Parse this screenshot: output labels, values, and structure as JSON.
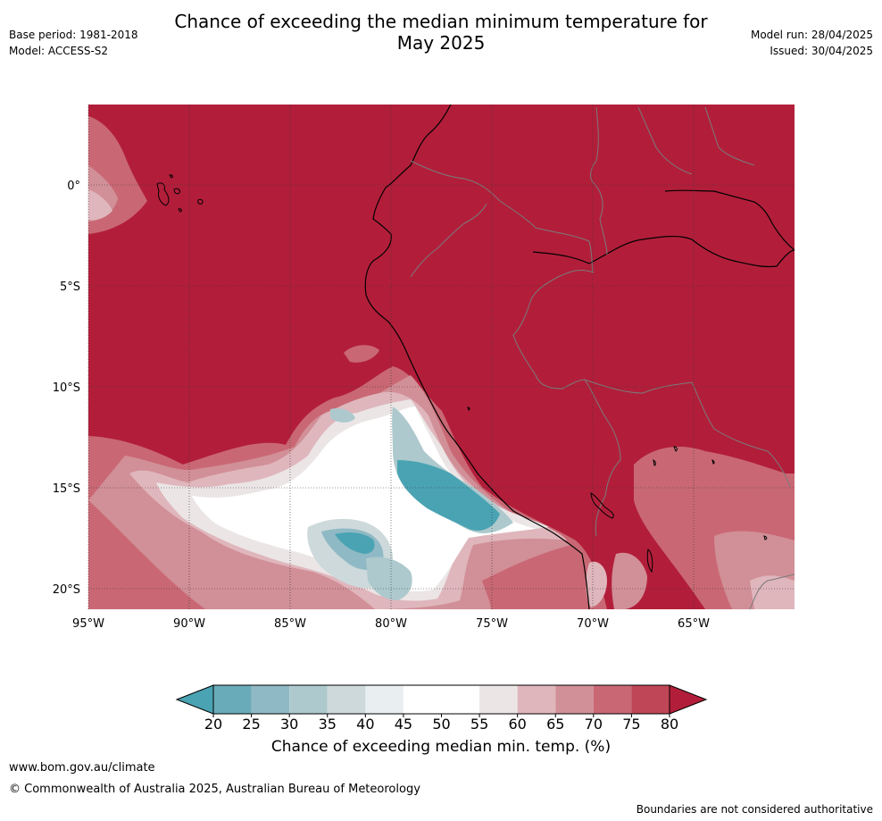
{
  "header": {
    "title_line1": "Chance of exceeding the median minimum temperature for",
    "title_line2": "May 2025",
    "base_period": "Base period: 1981-2018",
    "model": "Model: ACCESS-S2",
    "model_run": "Model run: 28/04/2025",
    "issued": "Issued: 30/04/2025"
  },
  "map": {
    "lat_labels": [
      "0°",
      "5°S",
      "10°S",
      "15°S",
      "20°S"
    ],
    "lon_labels": [
      "95°W",
      "90°W",
      "85°W",
      "80°W",
      "75°W",
      "70°W",
      "65°W"
    ],
    "colors": {
      "ocean_high": "#b21e3a",
      "land": "#b21e3a",
      "coast": "#000000",
      "borders": "#7a7a7a"
    }
  },
  "colorbar": {
    "ticks": [
      "20",
      "25",
      "30",
      "35",
      "40",
      "45",
      "50",
      "55",
      "60",
      "65",
      "70",
      "75",
      "80"
    ],
    "colors": [
      "#4aa3b3",
      "#6aabb9",
      "#8fb9c4",
      "#adc9cd",
      "#cdd9db",
      "#e9eef0",
      "#ffffff",
      "#ffffff",
      "#ebe5e6",
      "#dfb6bc",
      "#d18f97",
      "#c96874",
      "#be4656",
      "#b21e3a"
    ],
    "label": "Chance of exceeding median min. temp. (%)"
  },
  "footer": {
    "url": "www.bom.gov.au/climate",
    "copyright": "© Commonwealth of Australia 2025, Australian Bureau of Meteorology",
    "disclaimer": "Boundaries are not considered authoritative"
  }
}
